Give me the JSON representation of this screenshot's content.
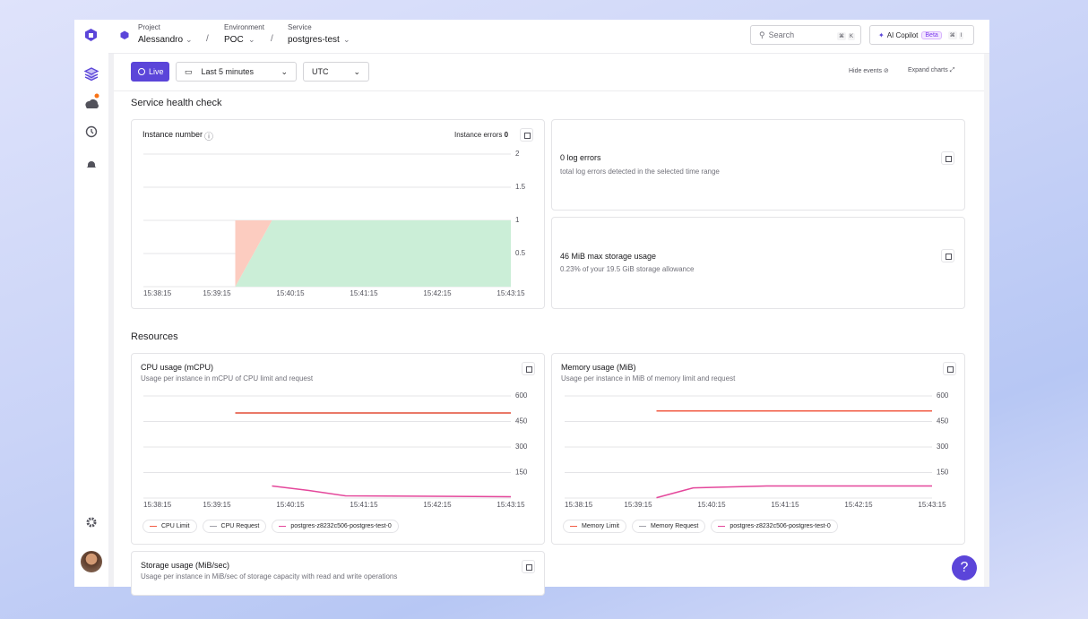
{
  "header": {
    "project_label": "Project",
    "project": "Alessandro",
    "environment_label": "Environment",
    "environment": "POC",
    "service_label": "Service",
    "service": "postgres-test",
    "separator": "/",
    "search": "Search",
    "search_shortcut": [
      "⌘",
      "K"
    ],
    "copilot": "AI Copilot",
    "copilot_badge": "Beta",
    "copilot_shortcut": [
      "⌘",
      "I"
    ]
  },
  "toolbar": {
    "live": "Live",
    "range": "Last 5 minutes",
    "timezone": "UTC",
    "hide_events": "Hide events",
    "expand_charts": "Expand charts"
  },
  "health": {
    "title": "Service health check",
    "instance_errors_label": "Instance errors",
    "instance_errors": 0,
    "log_errors": "0 log errors",
    "log_errors_note": "total log errors detected in the selected time range",
    "storage": "46 MiB max storage usage",
    "storage_note": "0.23% of your 19.5 GiB storage allowance"
  },
  "resources": {
    "title": "Resources",
    "storage_chart_title": "Storage usage (MiB/sec)",
    "storage_chart_subtitle": "Usage per instance in MiB/sec of storage capacity with read and write operations"
  },
  "help": "?",
  "chart_data": [
    {
      "type": "area",
      "stacked": true,
      "title": "Instance number",
      "xlim": [
        "15:38:15",
        "15:43:15"
      ],
      "xticks": [
        "15:38:15",
        "15:39:15",
        "15:40:15",
        "15:41:15",
        "15:42:15",
        "15:43:15"
      ],
      "ylim": [
        0,
        2
      ],
      "yticks": [
        0.5,
        1,
        1.5,
        2
      ],
      "grid": true,
      "series": [
        {
          "color": "#cbeed7",
          "x": [
            "15:39:30",
            "15:40:00",
            "15:43:15"
          ],
          "values": [
            0,
            1,
            1
          ]
        },
        {
          "color": "#fcccc0",
          "x": [
            "15:39:30",
            "15:40:00",
            "15:43:15"
          ],
          "values": [
            1,
            0,
            0
          ]
        }
      ]
    },
    {
      "type": "line",
      "title": "CPU usage (mCPU)",
      "subtitle": "Usage per instance in mCPU of CPU limit and request",
      "xlim": [
        "15:38:15",
        "15:43:15"
      ],
      "xticks": [
        "15:38:15",
        "15:39:15",
        "15:40:15",
        "15:41:15",
        "15:42:15",
        "15:43:15"
      ],
      "ylim": [
        0,
        600
      ],
      "yticks": [
        150,
        300,
        450,
        600
      ],
      "grid": true,
      "series": [
        {
          "name": "CPU Limit",
          "color": "#f25c45",
          "x": [
            "15:39:30",
            "15:43:15"
          ],
          "values": [
            500,
            500
          ]
        },
        {
          "name": "CPU Request",
          "color": "#a1a1aa",
          "x": [
            "15:39:30",
            "15:43:15"
          ],
          "values": [
            500,
            500
          ]
        },
        {
          "name": "postgres-z8232c506-postgres-test-0",
          "color": "#e4479b",
          "x": [
            "15:40:00",
            "15:40:30",
            "15:41:00",
            "15:43:15"
          ],
          "values": [
            71,
            45,
            13,
            8
          ]
        }
      ]
    },
    {
      "type": "line",
      "title": "Memory usage (MiB)",
      "subtitle": "Usage per instance in MiB of memory limit and request",
      "xlim": [
        "15:38:15",
        "15:43:15"
      ],
      "xticks": [
        "15:38:15",
        "15:39:15",
        "15:40:15",
        "15:41:15",
        "15:42:15",
        "15:43:15"
      ],
      "ylim": [
        0,
        600
      ],
      "yticks": [
        150,
        300,
        450,
        600
      ],
      "grid": true,
      "series": [
        {
          "name": "Memory Limit",
          "color": "#f25c45",
          "x": [
            "15:39:30",
            "15:43:15"
          ],
          "values": [
            512,
            512
          ]
        },
        {
          "name": "Memory Request",
          "color": "#a1a1aa",
          "x": [
            "15:39:30",
            "15:43:15"
          ],
          "values": [
            512,
            512
          ]
        },
        {
          "name": "postgres-z8232c506-postgres-test-0",
          "color": "#e4479b",
          "x": [
            "15:39:30",
            "15:40:00",
            "15:41:00",
            "15:43:15"
          ],
          "values": [
            2,
            60,
            71,
            71
          ]
        }
      ]
    }
  ]
}
